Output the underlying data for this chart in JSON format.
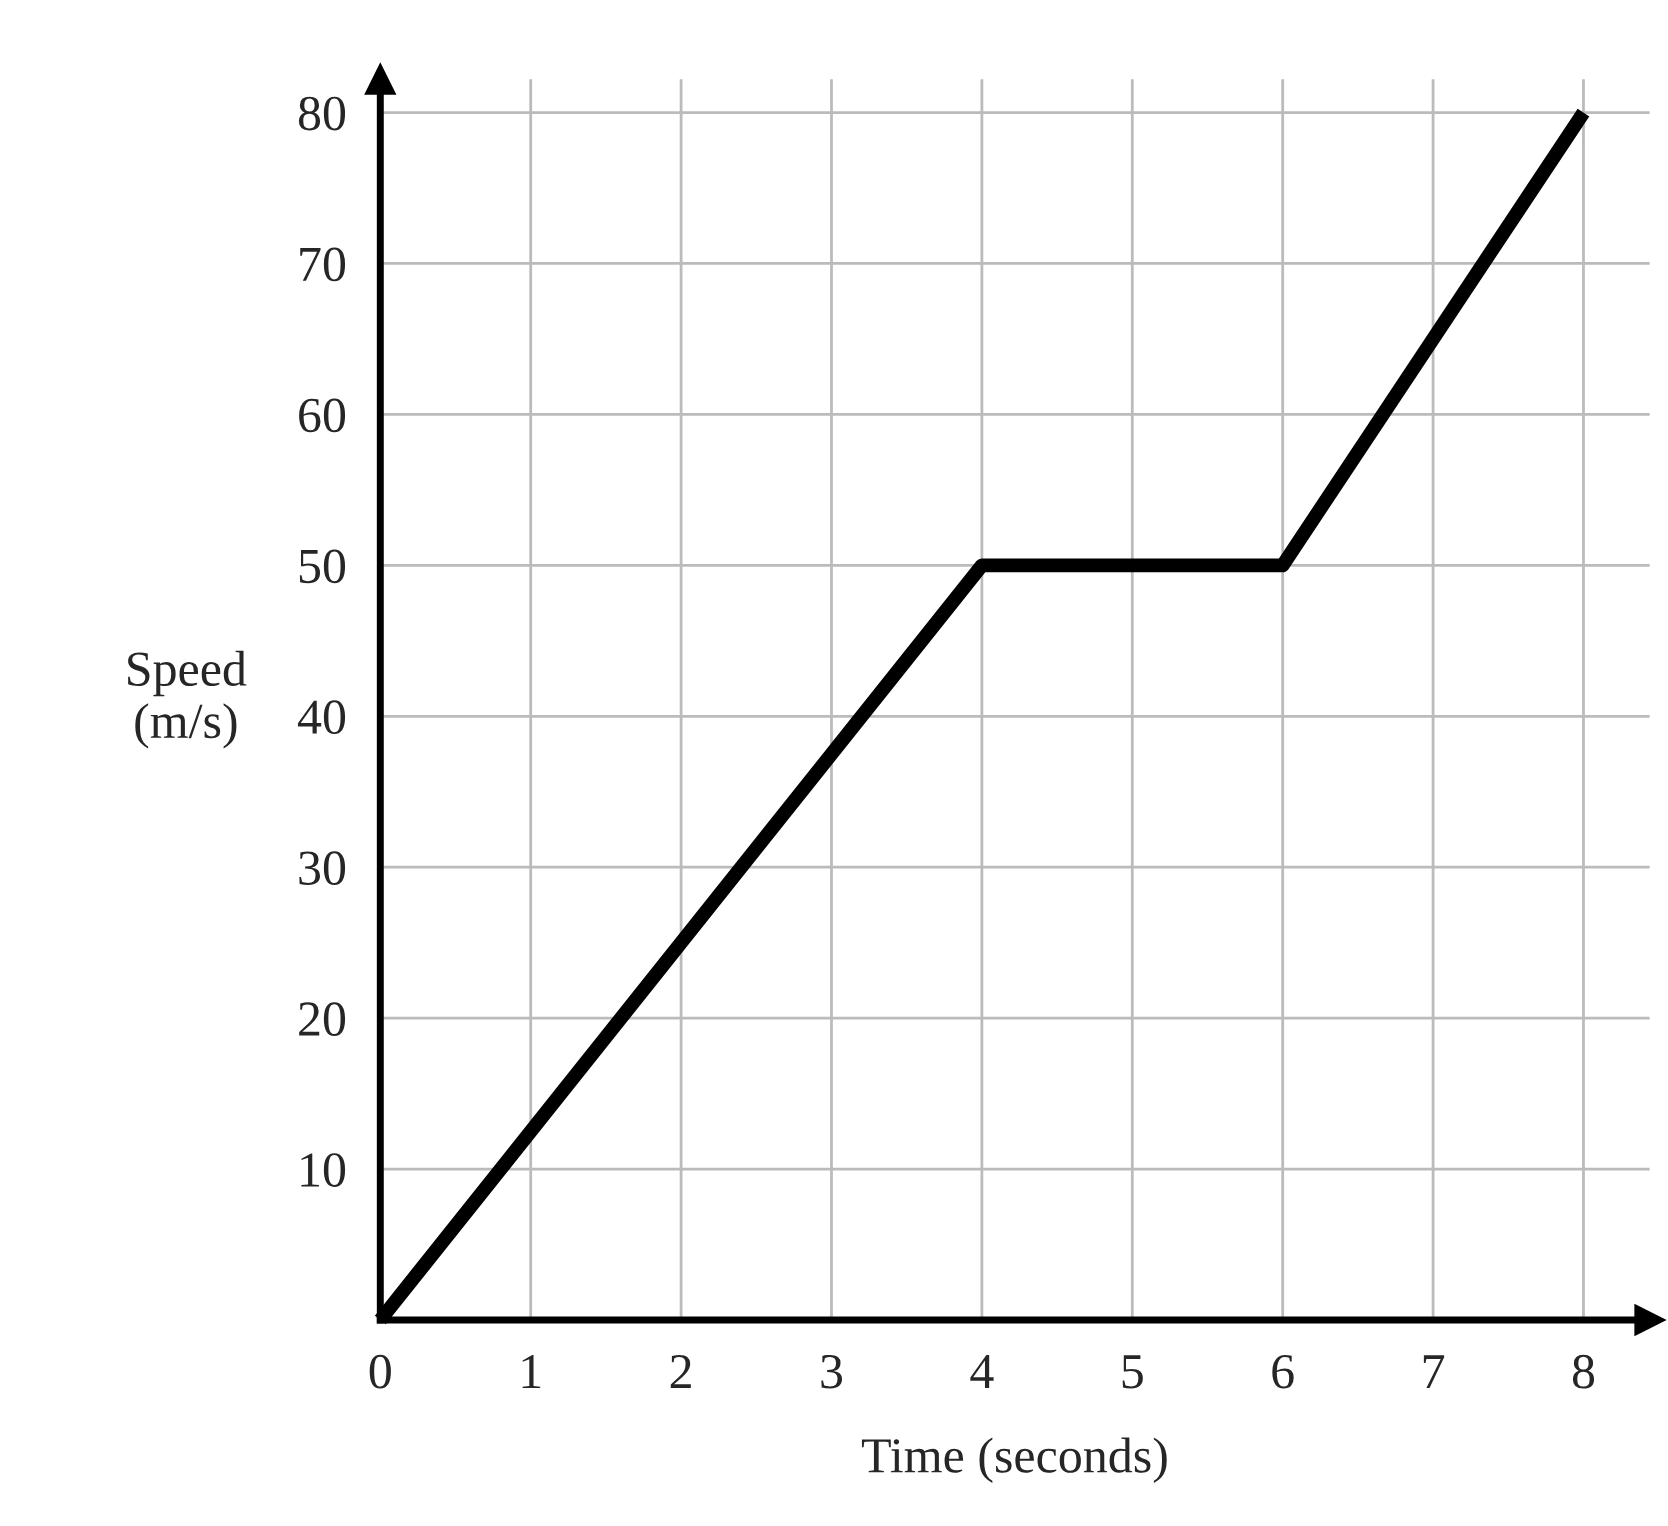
{
  "chart_data": {
    "type": "line",
    "xlabel": "Time (seconds)",
    "ylabel": "Speed\n(m/s)",
    "x": [
      0,
      4,
      6,
      8
    ],
    "series": [
      {
        "color": "#000000",
        "values": [
          0,
          50,
          50,
          80
        ]
      }
    ],
    "xlim": [
      0,
      8.44
    ],
    "ylim": [
      0,
      82.2
    ],
    "xticks": [
      0,
      1,
      2,
      3,
      4,
      5,
      6,
      7,
      8
    ],
    "yticks": [
      {
        "value": 0,
        "label": null
      },
      10,
      20,
      30,
      40,
      50,
      60,
      70,
      80
    ],
    "grid": true,
    "marker": "none",
    "line_style": "solid"
  }
}
